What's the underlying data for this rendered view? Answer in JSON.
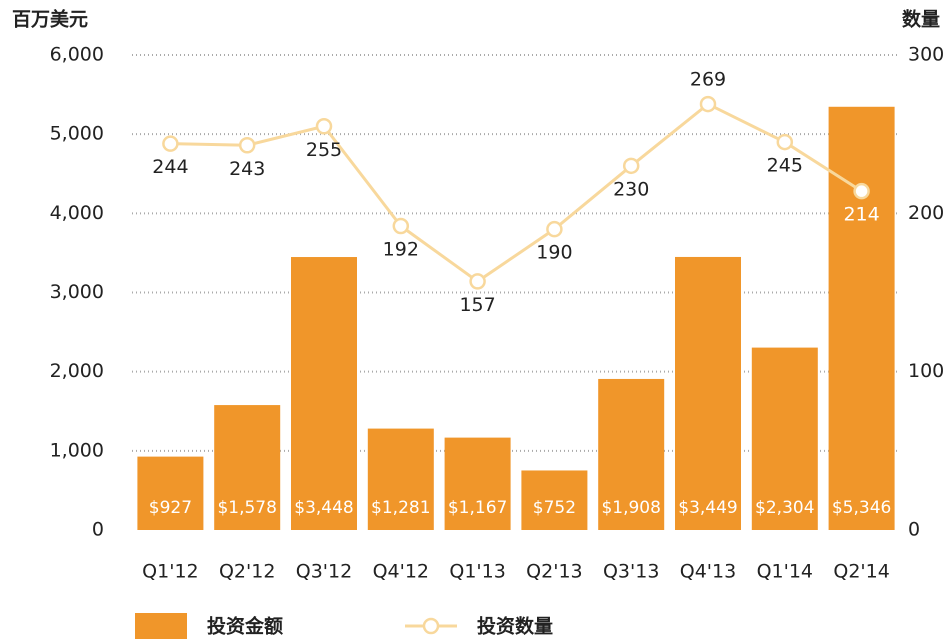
{
  "chart_data": {
    "type": "bar",
    "y_axis_title": "百万美元",
    "y2_axis_title": "数量",
    "categories": [
      "Q1'12",
      "Q2'12",
      "Q3'12",
      "Q4'12",
      "Q1'13",
      "Q2'13",
      "Q3'13",
      "Q4'13",
      "Q1'14",
      "Q2'14"
    ],
    "series": [
      {
        "name": "投资金额",
        "color": "#f0962a",
        "values": [
          927,
          1578,
          3448,
          1281,
          1167,
          752,
          1908,
          3449,
          2304,
          5346
        ],
        "value_labels": [
          "$927",
          "$1,578",
          "$3,448",
          "$1,281",
          "$1,167",
          "$752",
          "$1,908",
          "$3,449",
          "$2,304",
          "$5,346"
        ]
      },
      {
        "name": "投资数量",
        "color": "#f8d89c",
        "axis": "y2",
        "values": [
          244,
          243,
          255,
          192,
          157,
          190,
          230,
          269,
          245,
          214
        ]
      }
    ],
    "ylim": [
      0,
      6000
    ],
    "yticks": [
      0,
      {
        "value": 1000,
        "label": "1,000"
      },
      {
        "value": 2000,
        "label": "2,000"
      },
      {
        "value": 3000,
        "label": "3,000"
      },
      {
        "value": 4000,
        "label": "4,000"
      },
      {
        "value": 5000,
        "label": "5,000"
      },
      {
        "value": 6000,
        "label": "6,000"
      }
    ],
    "y2lim": [
      0,
      300
    ],
    "y2ticks": [
      0,
      100,
      200,
      300
    ],
    "grid": true
  }
}
